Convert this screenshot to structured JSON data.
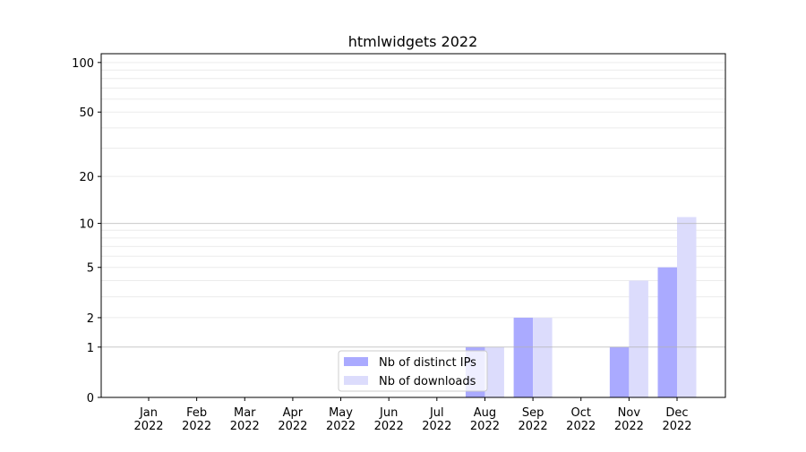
{
  "chart_data": {
    "type": "bar",
    "title": "htmlwidgets 2022",
    "xlabel": "",
    "ylabel": "",
    "yscale": "log(1+y)",
    "ylim": [
      0,
      113
    ],
    "yticks": [
      0,
      1,
      2,
      5,
      10,
      20,
      50,
      100
    ],
    "grid": "horizontal major and minor",
    "legend_position": "lower-center",
    "categories": [
      "Jan\n2022",
      "Feb\n2022",
      "Mar\n2022",
      "Apr\n2022",
      "May\n2022",
      "Jun\n2022",
      "Jul\n2022",
      "Aug\n2022",
      "Sep\n2022",
      "Oct\n2022",
      "Nov\n2022",
      "Dec\n2022"
    ],
    "series": [
      {
        "name": "Nb of distinct IPs",
        "color": "#aaaaff",
        "values": [
          0,
          0,
          0,
          0,
          0,
          0,
          0,
          1,
          2,
          0,
          1,
          5
        ]
      },
      {
        "name": "Nb of downloads",
        "color": "#dcdcfc",
        "values": [
          0,
          0,
          0,
          0,
          0,
          0,
          0,
          1,
          2,
          0,
          4,
          11
        ]
      }
    ]
  }
}
